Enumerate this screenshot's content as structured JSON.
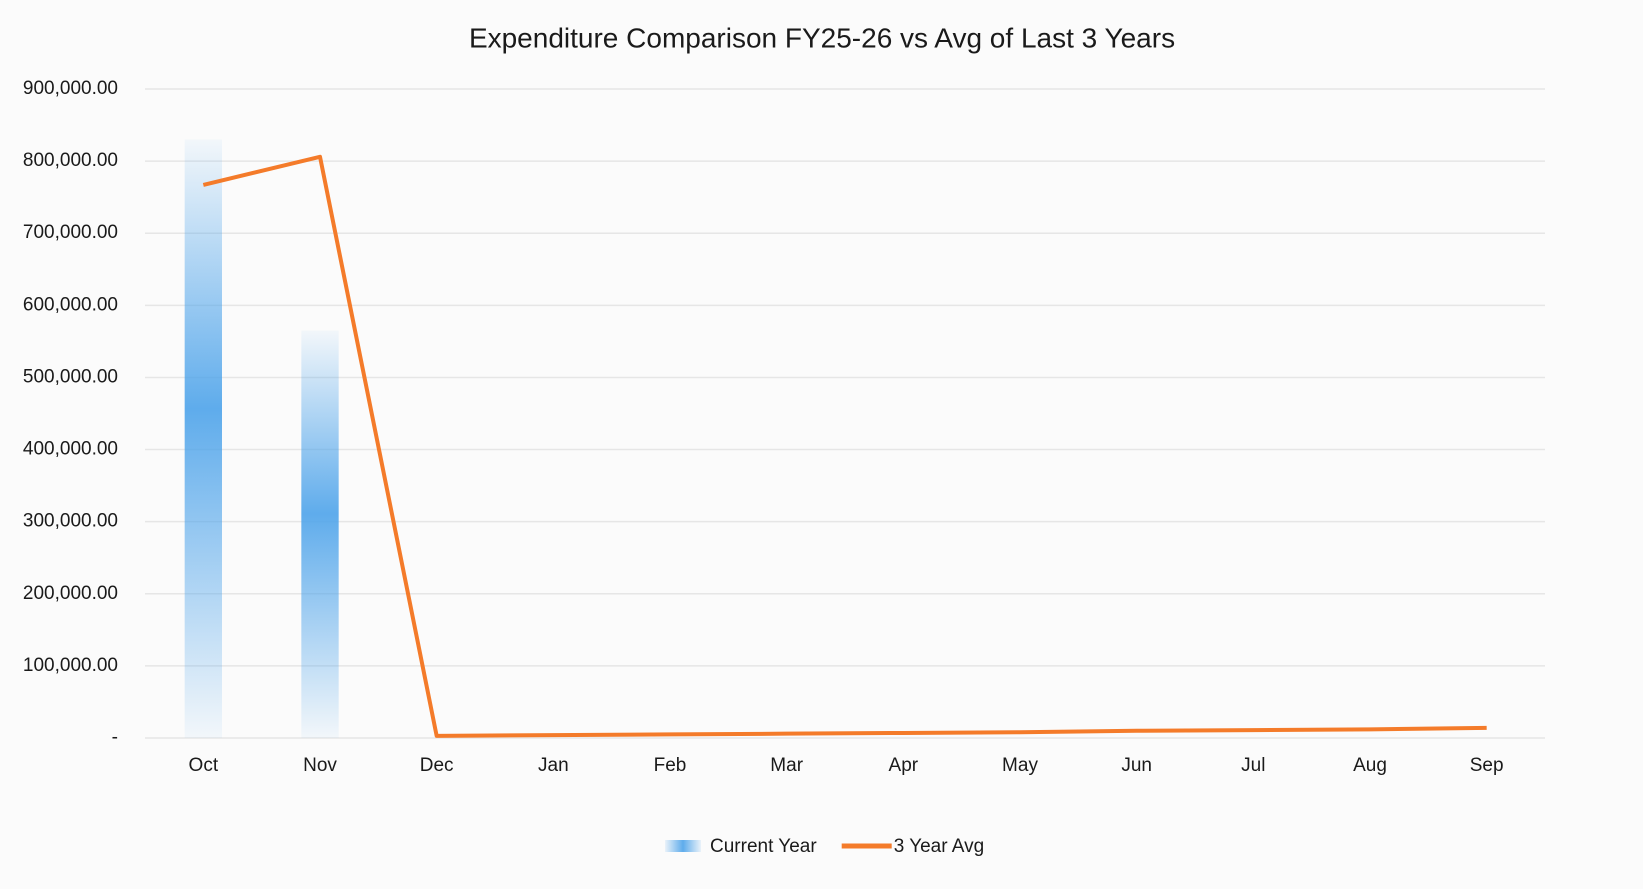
{
  "chart_data": {
    "type": "bar",
    "title": "Expenditure Comparison FY25-26 vs Avg of Last 3 Years",
    "categories": [
      "Oct",
      "Nov",
      "Dec",
      "Jan",
      "Feb",
      "Mar",
      "Apr",
      "May",
      "Jun",
      "Jul",
      "Aug",
      "Sep"
    ],
    "series": [
      {
        "name": "Current Year",
        "type": "bar",
        "color": "#4da3ea",
        "values": [
          830000,
          565000,
          null,
          null,
          null,
          null,
          null,
          null,
          null,
          null,
          null,
          null
        ]
      },
      {
        "name": "3 Year Avg",
        "type": "line",
        "color": "#f47b2a",
        "values": [
          767000,
          806000,
          3000,
          4000,
          5000,
          6000,
          7000,
          8000,
          10000,
          11000,
          12000,
          14000
        ]
      }
    ],
    "ylim": [
      0,
      900000
    ],
    "yticks": [
      {
        "value": 0,
        "label": "-"
      },
      {
        "value": 100000,
        "label": "100,000.00"
      },
      {
        "value": 200000,
        "label": "200,000.00"
      },
      {
        "value": 300000,
        "label": "300,000.00"
      },
      {
        "value": 400000,
        "label": "400,000.00"
      },
      {
        "value": 500000,
        "label": "500,000.00"
      },
      {
        "value": 600000,
        "label": "600,000.00"
      },
      {
        "value": 700000,
        "label": "700,000.00"
      },
      {
        "value": 800000,
        "label": "800,000.00"
      },
      {
        "value": 900000,
        "label": "900,000.00"
      }
    ],
    "grid": true,
    "legend": "bottom"
  }
}
